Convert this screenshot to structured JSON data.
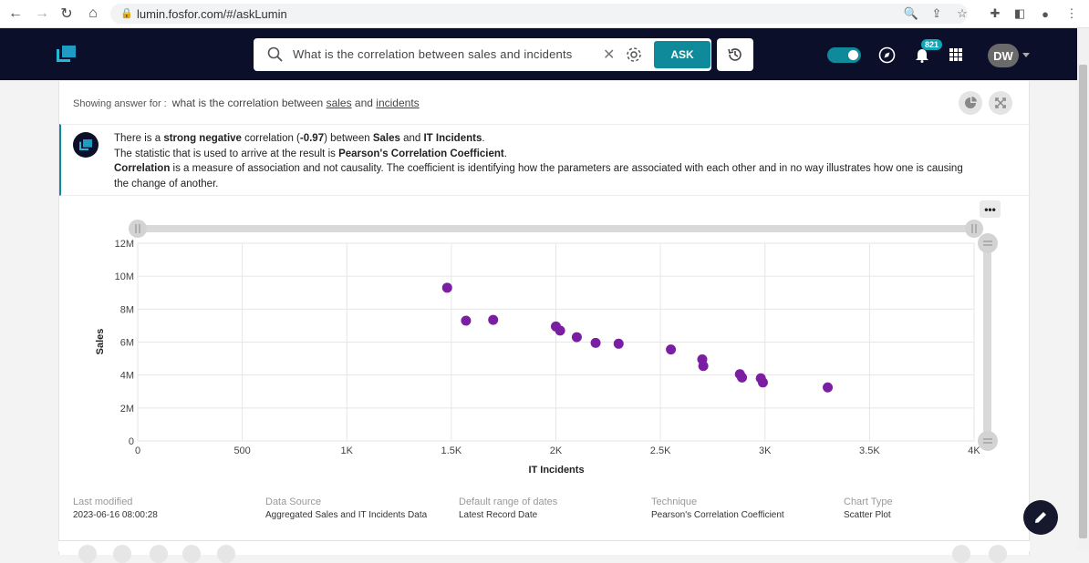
{
  "browser": {
    "url": "lumin.fosfor.com/#/askLumin"
  },
  "header": {
    "search_value": "What is the correlation between sales and incidents",
    "ask_label": "ASK",
    "notification_count": "821",
    "avatar_initials": "DW"
  },
  "answer": {
    "showing_label": "Showing answer for :",
    "query_prefix": "what is the correlation between",
    "query_term1": "sales",
    "query_and": "and",
    "query_term2": "incidents",
    "summary": {
      "l1_a": "There is a ",
      "l1_b": "strong negative",
      "l1_c": " correlation (",
      "l1_d": "-0.97",
      "l1_e": ") between ",
      "l1_f": "Sales",
      "l1_g": " and ",
      "l1_h": "IT Incidents",
      "l1_i": ".",
      "l2_a": "The statistic that is used to arrive at the result is ",
      "l2_b": "Pearson's Correlation Coefficient",
      "l2_c": ".",
      "l3_a": "Correlation",
      "l3_b": " is a measure of association and not causality. The coefficient is identifying how the parameters are associated with each other and in no way illustrates how one is causing the change of another."
    }
  },
  "chart_data": {
    "type": "scatter",
    "xlabel": "IT Incidents",
    "ylabel": "Sales",
    "xlim": [
      0,
      4000
    ],
    "ylim": [
      0,
      12000000
    ],
    "x_ticks": [
      "0",
      "500",
      "1K",
      "1.5K",
      "2K",
      "2.5K",
      "3K",
      "3.5K",
      "4K"
    ],
    "y_ticks": [
      "0",
      "2M",
      "4M",
      "6M",
      "8M",
      "10M",
      "12M"
    ],
    "grid": true,
    "point_color": "#7a1fa2",
    "points": [
      {
        "x": 1480,
        "y": 9300000
      },
      {
        "x": 1570,
        "y": 7300000
      },
      {
        "x": 1700,
        "y": 7350000
      },
      {
        "x": 2000,
        "y": 6950000
      },
      {
        "x": 2020,
        "y": 6700000
      },
      {
        "x": 2100,
        "y": 6300000
      },
      {
        "x": 2190,
        "y": 5950000
      },
      {
        "x": 2300,
        "y": 5900000
      },
      {
        "x": 2550,
        "y": 5550000
      },
      {
        "x": 2700,
        "y": 4950000
      },
      {
        "x": 2705,
        "y": 4550000
      },
      {
        "x": 2880,
        "y": 4050000
      },
      {
        "x": 2890,
        "y": 3850000
      },
      {
        "x": 2980,
        "y": 3800000
      },
      {
        "x": 2990,
        "y": 3550000
      },
      {
        "x": 3300,
        "y": 3250000
      }
    ]
  },
  "meta": {
    "last_modified_label": "Last modified",
    "last_modified_value": "2023-06-16 08:00:28",
    "data_source_label": "Data Source",
    "data_source_value": "Aggregated Sales and IT Incidents Data",
    "date_range_label": "Default range of dates",
    "date_range_value": "Latest Record Date",
    "technique_label": "Technique",
    "technique_value": "Pearson's Correlation Coefficient",
    "chart_type_label": "Chart Type",
    "chart_type_value": "Scatter Plot"
  }
}
